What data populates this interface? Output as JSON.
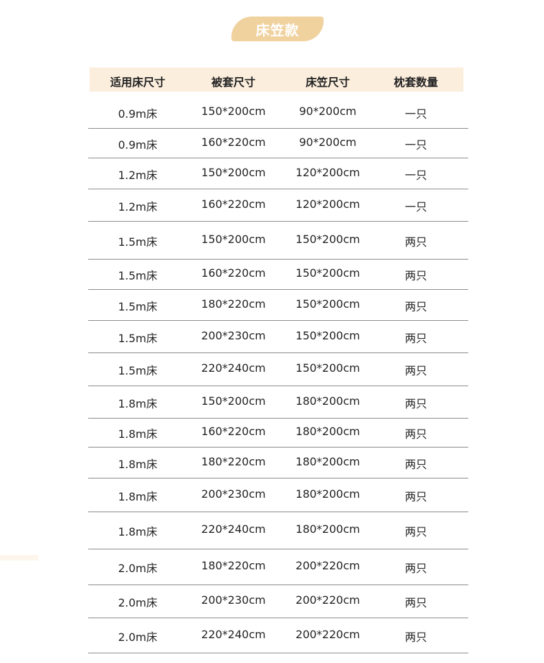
{
  "title": "床笠款",
  "accent_color": "#f0d29f",
  "header_bg": "#fbeedd",
  "columns": [
    "适用床尺寸",
    "被套尺寸",
    "床笠尺寸",
    "枕套数量"
  ],
  "rows": [
    [
      "0.9m床",
      "150*200cm",
      "90*200cm",
      "一只"
    ],
    [
      "0.9m床",
      "160*220cm",
      "90*200cm",
      "一只"
    ],
    [
      "1.2m床",
      "150*200cm",
      "120*200cm",
      "一只"
    ],
    [
      "1.2m床",
      "160*220cm",
      "120*200cm",
      "一只"
    ],
    [
      "1.5m床",
      "150*200cm",
      "150*200cm",
      "两只"
    ],
    [
      "1.5m床",
      "160*220cm",
      "150*200cm",
      "两只"
    ],
    [
      "1.5m床",
      "180*220cm",
      "150*200cm",
      "两只"
    ],
    [
      "1.5m床",
      "200*230cm",
      "150*200cm",
      "两只"
    ],
    [
      "1.5m床",
      "220*240cm",
      "150*200cm",
      "两只"
    ],
    [
      "1.8m床",
      "150*200cm",
      "180*200cm",
      "两只"
    ],
    [
      "1.8m床",
      "160*220cm",
      "180*200cm",
      "两只"
    ],
    [
      "1.8m床",
      "180*220cm",
      "180*200cm",
      "两只"
    ],
    [
      "1.8m床",
      "200*230cm",
      "180*200cm",
      "两只"
    ],
    [
      "1.8m床",
      "220*240cm",
      "180*200cm",
      "两只"
    ],
    [
      "2.0m床",
      "180*220cm",
      "200*220cm",
      "两只"
    ],
    [
      "2.0m床",
      "200*230cm",
      "200*220cm",
      "两只"
    ],
    [
      "2.0m床",
      "220*240cm",
      "200*220cm",
      "两只"
    ]
  ]
}
